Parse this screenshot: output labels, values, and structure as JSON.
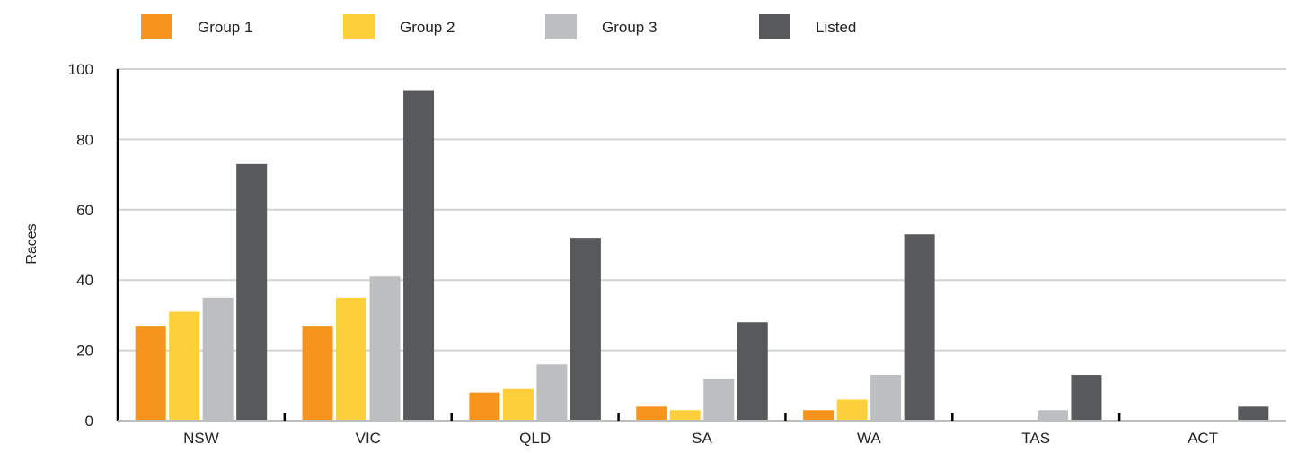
{
  "chart_data": {
    "type": "bar",
    "title": "",
    "xlabel": "",
    "ylabel": "Races",
    "ylim": [
      0,
      100
    ],
    "yticks": [
      0,
      20,
      40,
      60,
      80,
      100
    ],
    "grid": true,
    "legend_position": "top",
    "categories": [
      "NSW",
      "VIC",
      "QLD",
      "SA",
      "WA",
      "TAS",
      "ACT"
    ],
    "series": [
      {
        "name": "Group 1",
        "color": "#f7941d",
        "values": [
          27,
          27,
          8,
          4,
          3,
          0,
          0
        ]
      },
      {
        "name": "Group 2",
        "color": "#fdd03b",
        "values": [
          31,
          35,
          9,
          3,
          6,
          0,
          0
        ]
      },
      {
        "name": "Group 3",
        "color": "#bcbec0",
        "values": [
          35,
          41,
          16,
          12,
          13,
          3,
          0
        ]
      },
      {
        "name": "Listed",
        "color": "#58595b",
        "values": [
          73,
          94,
          52,
          28,
          53,
          13,
          4
        ]
      }
    ]
  }
}
